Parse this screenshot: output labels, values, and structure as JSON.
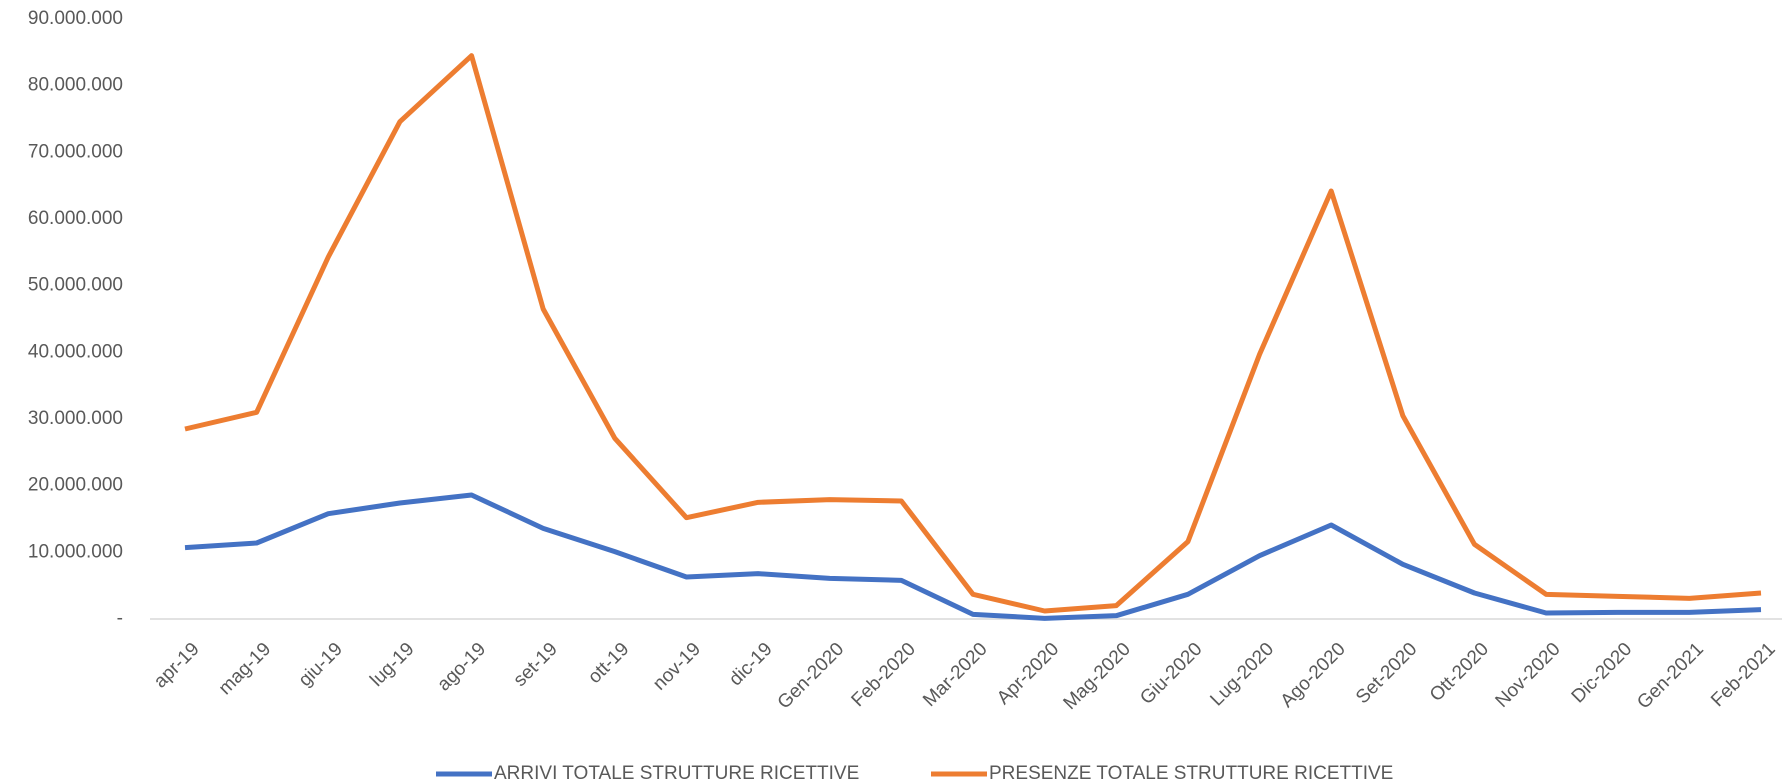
{
  "chart_data": {
    "type": "line",
    "categories": [
      "apr-19",
      "mag-19",
      "giu-19",
      "lug-19",
      "ago-19",
      "set-19",
      "ott-19",
      "nov-19",
      "dic-19",
      "Gen-2020",
      "Feb-2020",
      "Mar-2020",
      "Apr-2020",
      "Mag-2020",
      "Giu-2020",
      "Lug-2020",
      "Ago-2020",
      "Set-2020",
      "Ott-2020",
      "Nov-2020",
      "Dic-2020",
      "Gen-2021",
      "Feb-2021"
    ],
    "series": [
      {
        "name": "ARRIVI TOTALE STRUTTURE RICETTIVE",
        "color": "#4472c4",
        "values": [
          10700000,
          11400000,
          15800000,
          17400000,
          18600000,
          13600000,
          10100000,
          6300000,
          6800000,
          6100000,
          5800000,
          700000,
          100000,
          500000,
          3700000,
          9500000,
          14100000,
          8200000,
          3900000,
          900000,
          1000000,
          1000000,
          1400000
        ]
      },
      {
        "name": "PRESENZE TOTALE STRUTTURE RICETTIVE",
        "color": "#ed7d31",
        "values": [
          28500000,
          31000000,
          54300000,
          74600000,
          84500000,
          46500000,
          27100000,
          15200000,
          17500000,
          17900000,
          17700000,
          3700000,
          1200000,
          2000000,
          11600000,
          39700000,
          64200000,
          30500000,
          11200000,
          3700000,
          3400000,
          3100000,
          3900000
        ]
      }
    ],
    "ylim": [
      0,
      90000000
    ],
    "yticks": [
      {
        "value": 0,
        "label": "-"
      },
      {
        "value": 10000000,
        "label": "10.000.000"
      },
      {
        "value": 20000000,
        "label": "20.000.000"
      },
      {
        "value": 30000000,
        "label": "30.000.000"
      },
      {
        "value": 40000000,
        "label": "40.000.000"
      },
      {
        "value": 50000000,
        "label": "50.000.000"
      },
      {
        "value": 60000000,
        "label": "60.000.000"
      },
      {
        "value": 70000000,
        "label": "70.000.000"
      },
      {
        "value": 80000000,
        "label": "80.000.000"
      },
      {
        "value": 90000000,
        "label": "90.000.000"
      }
    ],
    "legend": "bottom"
  }
}
